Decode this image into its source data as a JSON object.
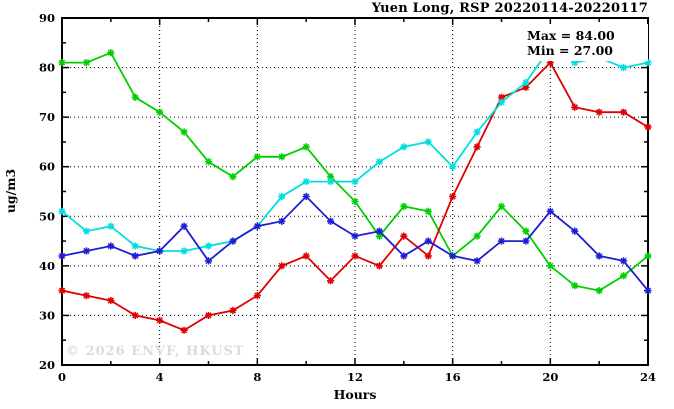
{
  "chart_data": {
    "type": "line",
    "title": "Yuen Long, RSP 20220114-20220117",
    "xlabel": "Hours",
    "ylabel": "ug/m3",
    "xlim": [
      0,
      24
    ],
    "ylim": [
      20,
      90
    ],
    "xticks_major": [
      0,
      4,
      8,
      12,
      16,
      20,
      24
    ],
    "xtick_minor_step": 2,
    "yticks_major": [
      20,
      30,
      40,
      50,
      60,
      70,
      80,
      90
    ],
    "ytick_minor_step": 5,
    "grid_x": [
      4,
      8,
      12,
      16,
      20
    ],
    "grid_y": [
      30,
      40,
      50,
      60,
      70,
      80
    ],
    "grid_style": "dotted",
    "legend_position": "top-right-inside",
    "x": [
      0,
      1,
      2,
      3,
      4,
      5,
      6,
      7,
      8,
      9,
      10,
      11,
      12,
      13,
      14,
      15,
      16,
      17,
      18,
      19,
      20,
      21,
      22,
      23,
      24
    ],
    "series": [
      {
        "name": "green",
        "color": "#00CF00",
        "values": [
          81,
          81,
          83,
          74,
          71,
          67,
          61,
          58,
          62,
          62,
          64,
          58,
          53,
          46,
          52,
          51,
          42,
          46,
          52,
          47,
          40,
          36,
          35,
          38,
          42
        ]
      },
      {
        "name": "red",
        "color": "#DF0000",
        "values": [
          35,
          34,
          33,
          30,
          29,
          27,
          30,
          31,
          34,
          40,
          42,
          37,
          42,
          40,
          46,
          42,
          54,
          64,
          74,
          76,
          81,
          72,
          71,
          71,
          68
        ]
      },
      {
        "name": "cyan",
        "color": "#00DFDF",
        "values": [
          51,
          47,
          48,
          44,
          43,
          43,
          44,
          45,
          48,
          54,
          57,
          57,
          57,
          61,
          64,
          65,
          60,
          67,
          73,
          77,
          84,
          81,
          82,
          80,
          81
        ]
      },
      {
        "name": "blue",
        "color": "#1E1ED2",
        "values": [
          42,
          43,
          44,
          42,
          43,
          48,
          41,
          45,
          48,
          49,
          54,
          49,
          46,
          47,
          42,
          45,
          42,
          41,
          45,
          45,
          51,
          47,
          42,
          41,
          35
        ]
      }
    ],
    "annotations": {
      "max_label": "Max = 84.00",
      "min_label": "Min = 27.00"
    },
    "watermark": "© 2026 ENVF, HKUST",
    "frame_color": "#000000",
    "background_color": "#FFFFFF"
  }
}
